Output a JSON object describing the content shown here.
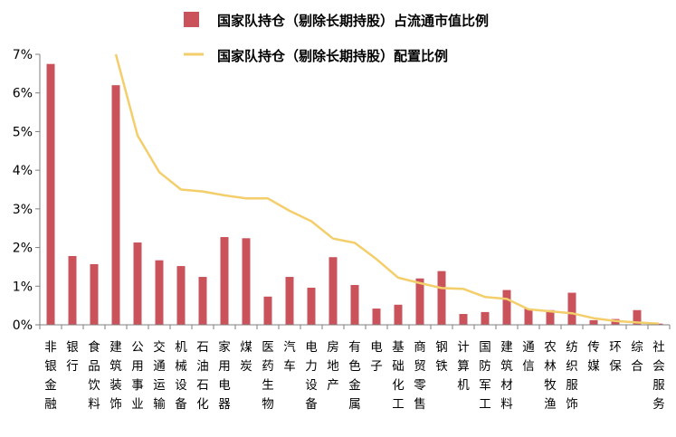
{
  "chart_data": {
    "type": "bar",
    "categories": [
      "非银金融",
      "银行",
      "食品饮料",
      "建筑装饰",
      "公用事业",
      "交通运输",
      "机械设备",
      "石油石化",
      "家用电器",
      "煤炭",
      "医药生物",
      "汽车",
      "电力设备",
      "房地产",
      "有色金属",
      "电子",
      "基础化工",
      "商贸零售",
      "钢铁",
      "计算机",
      "国防军工",
      "建筑材料",
      "通信",
      "农林牧渔",
      "纺织服饰",
      "传媒",
      "环保",
      "综合",
      "社会服务"
    ],
    "series": [
      {
        "name": "国家队持仓（剔除长期持股）占流通市值比例",
        "kind": "bar",
        "color": "#C9525B",
        "values": [
          6.75,
          1.78,
          1.57,
          6.2,
          2.13,
          1.67,
          1.52,
          1.24,
          2.27,
          2.24,
          0.73,
          1.24,
          0.96,
          1.75,
          1.03,
          0.42,
          0.52,
          1.2,
          1.39,
          0.28,
          0.33,
          0.9,
          0.42,
          0.38,
          0.83,
          0.12,
          0.15,
          0.38,
          0.03
        ]
      },
      {
        "name": "国家队持仓（剔除长期持股）配置比例",
        "kind": "line",
        "color": "#F3CE6B",
        "values": [
          null,
          null,
          null,
          7.0,
          4.9,
          3.95,
          3.5,
          3.45,
          3.35,
          3.27,
          3.27,
          2.95,
          2.68,
          2.23,
          2.12,
          1.7,
          1.22,
          1.08,
          0.95,
          0.93,
          0.72,
          0.67,
          0.4,
          0.35,
          0.3,
          0.17,
          0.1,
          0.06,
          0.03
        ]
      }
    ],
    "yticks": [
      "0%",
      "1%",
      "2%",
      "3%",
      "4%",
      "5%",
      "6%",
      "7%"
    ],
    "ylim": [
      0,
      7
    ],
    "grid": false,
    "legend": "top"
  }
}
